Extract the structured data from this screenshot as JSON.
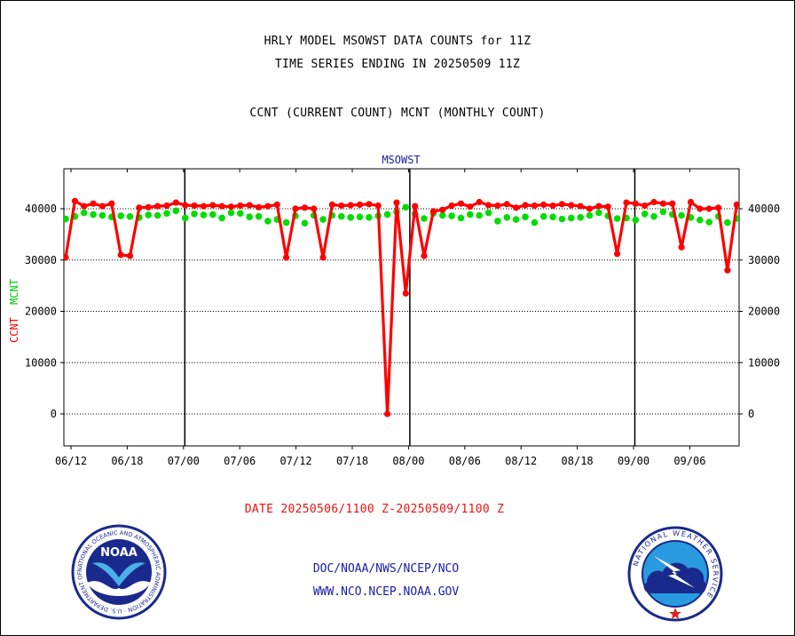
{
  "header": {
    "title1": "HRLY MODEL MSOWST DATA COUNTS for 11Z",
    "title2": "TIME SERIES ENDING IN 20250509 11Z",
    "subtitle": "CCNT (CURRENT COUNT) MCNT (MONTHLY COUNT)"
  },
  "footer": {
    "date_range": "DATE 20250506/1100 Z-20250509/1100 Z",
    "org_path": "DOC/NOAA/NWS/NCEP/NCO",
    "website": "WWW.NCO.NCEP.NOAA.GOV"
  },
  "logos": {
    "noaa_text": "NOAA",
    "noaa_ring": "NATIONAL OCEANIC AND ATMOSPHERIC ADMINISTRATION · U.S. DEPARTMENT OF COMMERCE",
    "nws_ring": "NATIONAL WEATHER SERVICE"
  },
  "chart_data": {
    "type": "line",
    "title": "MSOWST",
    "ylabel_ccnt": "CCNT",
    "ylabel_mcnt": "MCNT",
    "ylim": [
      -6000,
      45000
    ],
    "yticks": [
      0,
      10000,
      20000,
      30000,
      40000
    ],
    "grid": "horizontal dotted lines at y ticks",
    "x_tick_labels": [
      "06/12",
      "06/18",
      "07/00",
      "07/06",
      "07/12",
      "07/18",
      "08/00",
      "08/06",
      "08/12",
      "08/18",
      "09/00",
      "09/06"
    ],
    "day_separators": [
      "07/00",
      "08/00",
      "09/00"
    ],
    "x_unit": "hour index starting at 06/11",
    "series": [
      {
        "name": "CCNT",
        "color": "#ff0000",
        "x": [
          0,
          1,
          2,
          3,
          4,
          5,
          6,
          7,
          8,
          9,
          10,
          11,
          12,
          13,
          14,
          15,
          16,
          17,
          18,
          19,
          20,
          21,
          22,
          23,
          24,
          25,
          26,
          27,
          28,
          29,
          30,
          31,
          32,
          33,
          34,
          35,
          36,
          37,
          38,
          39,
          40,
          41,
          42,
          43,
          44,
          45,
          46,
          47,
          48,
          49,
          50,
          51,
          52,
          53,
          54,
          55,
          56,
          57,
          58,
          59,
          60,
          61,
          62,
          63,
          64,
          65,
          66,
          67,
          68,
          69,
          70,
          71,
          72,
          73
        ],
        "values": [
          30500,
          41500,
          40500,
          41000,
          40500,
          41000,
          31000,
          30800,
          40200,
          40300,
          40500,
          40600,
          41200,
          40700,
          40600,
          40500,
          40700,
          40500,
          40400,
          40600,
          40700,
          40300,
          40500,
          40800,
          30500,
          40000,
          40200,
          40000,
          30500,
          40800,
          40600,
          40700,
          40800,
          40900,
          40600,
          0,
          41200,
          23500,
          40500,
          30800,
          39500,
          39800,
          40600,
          41000,
          40400,
          41300,
          40700,
          40600,
          40900,
          40200,
          40700,
          40600,
          40800,
          40600,
          40900,
          40700,
          40500,
          40000,
          40500,
          40400,
          31200,
          41200,
          41000,
          40600,
          41300,
          41000,
          41000,
          32500,
          41300,
          40000,
          40000,
          40200,
          28000,
          40800
        ]
      },
      {
        "name": "MCNT",
        "color": "#00dd00",
        "x": [
          0,
          1,
          2,
          3,
          4,
          5,
          6,
          7,
          8,
          9,
          10,
          11,
          12,
          13,
          14,
          15,
          16,
          17,
          18,
          19,
          20,
          21,
          22,
          23,
          24,
          25,
          26,
          27,
          28,
          29,
          30,
          31,
          32,
          33,
          34,
          35,
          36,
          37,
          38,
          39,
          40,
          41,
          42,
          43,
          44,
          45,
          46,
          47,
          48,
          49,
          50,
          51,
          52,
          53,
          54,
          55,
          56,
          57,
          58,
          59,
          60,
          61,
          62,
          63,
          64,
          65,
          66,
          67,
          68,
          69,
          70,
          71,
          72,
          73
        ],
        "values": [
          38000,
          38500,
          39200,
          38900,
          38700,
          38400,
          38600,
          38500,
          38300,
          38800,
          38700,
          39100,
          39600,
          38200,
          39000,
          38800,
          38900,
          38200,
          39200,
          39100,
          38400,
          38500,
          37600,
          37900,
          37300,
          38600,
          37200,
          38700,
          37900,
          38700,
          38500,
          38300,
          38400,
          38300,
          38600,
          38900,
          39400,
          40300,
          39000,
          38100,
          39100,
          38700,
          38600,
          38200,
          38900,
          38700,
          39200,
          37600,
          38300,
          37900,
          38400,
          37300,
          38500,
          38400,
          38000,
          38200,
          38300,
          38700,
          39200,
          38600,
          38100,
          38200,
          37800,
          39000,
          38500,
          39400,
          38900,
          38700,
          38300,
          37800,
          37400,
          38500,
          37300,
          38100
        ]
      }
    ]
  }
}
